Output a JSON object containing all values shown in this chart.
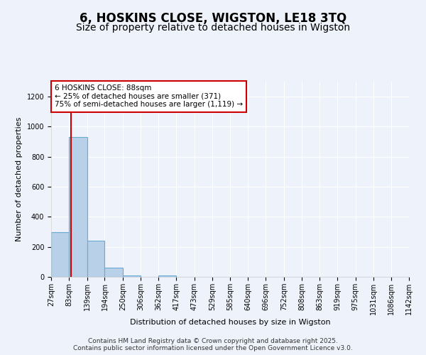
{
  "title1": "6, HOSKINS CLOSE, WIGSTON, LE18 3TQ",
  "title2": "Size of property relative to detached houses in Wigston",
  "xlabel": "Distribution of detached houses by size in Wigston",
  "ylabel": "Number of detached properties",
  "bin_edges": [
    27,
    83,
    139,
    194,
    250,
    306,
    362,
    417,
    473,
    529,
    585,
    640,
    696,
    752,
    808,
    863,
    919,
    975,
    1031,
    1086,
    1142
  ],
  "bar_heights": [
    300,
    930,
    240,
    60,
    10,
    0,
    10,
    0,
    0,
    0,
    0,
    0,
    0,
    0,
    0,
    0,
    0,
    0,
    0,
    0
  ],
  "bar_color": "#b8d0e8",
  "bar_edge_color": "#6aaad4",
  "property_size": 88,
  "red_line_color": "#cc0000",
  "annotation_line1": "6 HOSKINS CLOSE: 88sqm",
  "annotation_line2": "← 25% of detached houses are smaller (371)",
  "annotation_line3": "75% of semi-detached houses are larger (1,119) →",
  "annotation_box_color": "#ffffff",
  "annotation_box_edge_color": "#cc0000",
  "ylim": [
    0,
    1300
  ],
  "yticks": [
    0,
    200,
    400,
    600,
    800,
    1000,
    1200
  ],
  "footnote": "Contains HM Land Registry data © Crown copyright and database right 2025.\nContains public sector information licensed under the Open Government Licence v3.0.",
  "background_color": "#eef2fb",
  "grid_color": "#ffffff",
  "title1_fontsize": 12,
  "title2_fontsize": 10,
  "annotation_fontsize": 7.5,
  "axis_label_fontsize": 8,
  "tick_fontsize": 7,
  "footnote_fontsize": 6.5
}
